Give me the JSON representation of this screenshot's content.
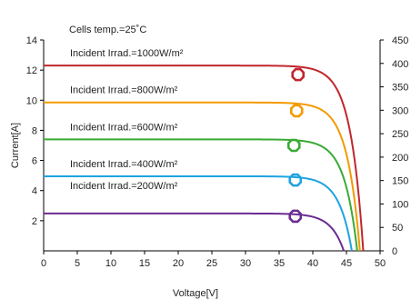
{
  "chart_data": {
    "type": "line",
    "title": "",
    "xlabel": "Voltage[V]",
    "ylabel": "Current[A]",
    "xlim": [
      0,
      50
    ],
    "ylim": [
      0,
      14
    ],
    "y2lim": [
      0,
      450
    ],
    "x_ticks": [
      "0",
      "5",
      "10",
      "15",
      "20",
      "25",
      "30",
      "35",
      "40",
      "45",
      "50"
    ],
    "y_ticks": [
      "2",
      "4",
      "6",
      "8",
      "10",
      "12",
      "14"
    ],
    "y2_ticks": [
      "0",
      "50",
      "100",
      "150",
      "200",
      "250",
      "300",
      "350",
      "400",
      "450"
    ],
    "grid": false,
    "annotations": {
      "temperature": "Cells temp.=25˚C"
    },
    "series": [
      {
        "name": "Incident Irrad.=1000W/m²",
        "color": "#c1272d",
        "isc": 12.3,
        "voc": 47.5,
        "mpp": [
          37.8,
          11.7
        ]
      },
      {
        "name": "Incident Irrad.=800W/m²",
        "color": "#f29a00",
        "isc": 9.85,
        "voc": 47.0,
        "mpp": [
          37.6,
          9.3
        ]
      },
      {
        "name": "Incident Irrad.=600W/m²",
        "color": "#3aaa35",
        "isc": 7.4,
        "voc": 46.6,
        "mpp": [
          37.2,
          7.0
        ]
      },
      {
        "name": "Incident Irrad.=400W/m²",
        "color": "#1fa3e0",
        "isc": 4.95,
        "voc": 45.8,
        "mpp": [
          37.4,
          4.7
        ]
      },
      {
        "name": "Incident Irrad.=200W/m²",
        "color": "#6a2c91",
        "isc": 2.48,
        "voc": 44.6,
        "mpp": [
          37.4,
          2.3
        ]
      }
    ]
  }
}
